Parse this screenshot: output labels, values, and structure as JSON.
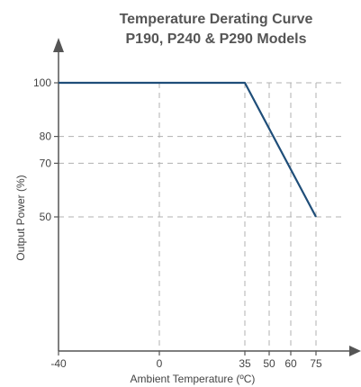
{
  "chart_data": {
    "type": "line",
    "title": [
      "Temperature Derating Curve",
      "P190, P240 & P290 Models"
    ],
    "xlabel": "Ambient Temperature (ºC)",
    "ylabel": "Output Power (%)",
    "x_ticks": [
      {
        "value": -40,
        "label": "-40"
      },
      {
        "value": 0,
        "label": "0"
      },
      {
        "value": 35,
        "label": "35"
      },
      {
        "value": 50,
        "label": "50"
      },
      {
        "value": 60,
        "label": "60"
      },
      {
        "value": 75,
        "label": "75"
      }
    ],
    "y_ticks": [
      {
        "value": 100,
        "label": "100"
      },
      {
        "value": 80,
        "label": "80"
      },
      {
        "value": 70,
        "label": "70"
      },
      {
        "value": 50,
        "label": "50"
      }
    ],
    "series": [
      {
        "points": [
          {
            "x": -40,
            "y": 100
          },
          {
            "x": 35,
            "y": 100
          },
          {
            "x": 75,
            "y": 50
          }
        ]
      }
    ],
    "grid": true,
    "grid_style": "dashed",
    "colors": {
      "line": "#1f4e79",
      "axis": "#555555",
      "grid": "#b0b0b0",
      "title": "#555555"
    }
  }
}
